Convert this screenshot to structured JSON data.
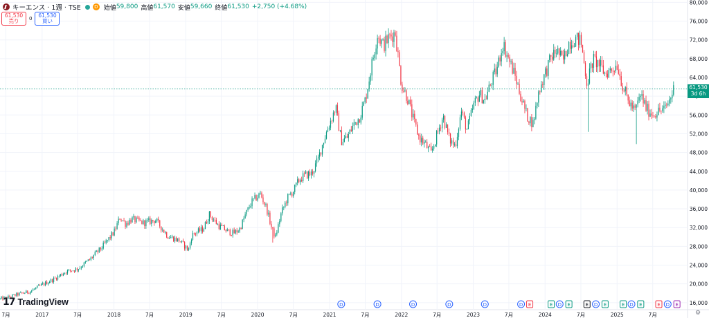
{
  "symbol": {
    "name": "キーエンス · 1週 · TSE",
    "icon": "keyence-logo-icon",
    "status_badge": "D"
  },
  "ohlc": {
    "open_label": "始値",
    "open": "59,800",
    "high_label": "高値",
    "high": "61,570",
    "low_label": "安値",
    "low": "59,660",
    "close_label": "終値",
    "close": "61,530",
    "change": "+2,750 (+4.68%)"
  },
  "trade": {
    "sell_price": "61,530",
    "sell_label": "売り",
    "spread": "0",
    "buy_price": "61,530",
    "buy_label": "買い"
  },
  "last_price": {
    "price": "61,530",
    "countdown": "3d 6h"
  },
  "brand": {
    "logo_icon": "tradingview-logo-icon",
    "name": "TradingView"
  },
  "colors": {
    "up": "#089981",
    "down": "#f23645",
    "dividend": "#2962ff",
    "earnings": "#089981",
    "grid": "#f0f3fa",
    "axis_text": "#131722"
  },
  "chart_data": {
    "type": "candlestick",
    "title": "キーエンス · 1週 · TSE",
    "interval": "1W",
    "currency": "JPY",
    "y_ticks": [
      16000,
      20000,
      24000,
      28000,
      32000,
      36000,
      40000,
      44000,
      48000,
      52000,
      56000,
      60000,
      64000,
      68000,
      72000,
      76000,
      80000
    ],
    "y_tick_labels": [
      "16,000",
      "20,000",
      "24,000",
      "28,000",
      "32,000",
      "36,000",
      "40,000",
      "44,000",
      "48,000",
      "52,000",
      "56,000",
      "60,000",
      "64,000",
      "68,000",
      "72,000",
      "76,000",
      "80,000"
    ],
    "ylim": [
      14500,
      80500
    ],
    "xlim": [
      "2016-06-01",
      "2025-12-25"
    ],
    "x_ticks": [
      {
        "date": "2016-07-01",
        "label": "7月"
      },
      {
        "date": "2017-01-01",
        "label": "2017"
      },
      {
        "date": "2017-07-01",
        "label": "7月"
      },
      {
        "date": "2018-01-01",
        "label": "2018"
      },
      {
        "date": "2018-07-01",
        "label": "7月"
      },
      {
        "date": "2019-01-01",
        "label": "2019"
      },
      {
        "date": "2019-07-01",
        "label": "7月"
      },
      {
        "date": "2020-01-01",
        "label": "2020"
      },
      {
        "date": "2020-07-01",
        "label": "7月"
      },
      {
        "date": "2021-01-01",
        "label": "2021"
      },
      {
        "date": "2021-07-01",
        "label": "7月"
      },
      {
        "date": "2022-01-01",
        "label": "2022"
      },
      {
        "date": "2022-07-01",
        "label": "7月"
      },
      {
        "date": "2023-01-01",
        "label": "2023"
      },
      {
        "date": "2023-07-01",
        "label": "7月"
      },
      {
        "date": "2024-01-01",
        "label": "2024"
      },
      {
        "date": "2024-07-01",
        "label": "7月"
      },
      {
        "date": "2025-01-01",
        "label": "2025"
      },
      {
        "date": "2025-07-01",
        "label": "7月"
      }
    ],
    "last_price": 61530,
    "close_anchors": [
      [
        "2016-06-01",
        16800
      ],
      [
        "2016-07-01",
        17000
      ],
      [
        "2016-09-01",
        17800
      ],
      [
        "2016-11-01",
        18400
      ],
      [
        "2017-01-01",
        19800
      ],
      [
        "2017-03-01",
        21000
      ],
      [
        "2017-05-01",
        22600
      ],
      [
        "2017-07-01",
        23200
      ],
      [
        "2017-09-01",
        25200
      ],
      [
        "2017-11-01",
        27800
      ],
      [
        "2018-01-01",
        31000
      ],
      [
        "2018-02-01",
        34200
      ],
      [
        "2018-03-01",
        32800
      ],
      [
        "2018-04-01",
        33800
      ],
      [
        "2018-06-01",
        33000
      ],
      [
        "2018-08-01",
        33600
      ],
      [
        "2018-10-01",
        30200
      ],
      [
        "2018-12-01",
        29200
      ],
      [
        "2019-01-15",
        27200
      ],
      [
        "2019-02-01",
        30400
      ],
      [
        "2019-04-01",
        31800
      ],
      [
        "2019-05-01",
        34800
      ],
      [
        "2019-06-15",
        32500
      ],
      [
        "2019-08-01",
        31200
      ],
      [
        "2019-09-01",
        30800
      ],
      [
        "2019-10-01",
        31600
      ],
      [
        "2019-11-01",
        34800
      ],
      [
        "2019-12-01",
        37400
      ],
      [
        "2020-01-15",
        39200
      ],
      [
        "2020-02-15",
        36200
      ],
      [
        "2020-03-15",
        31500
      ],
      [
        "2020-04-01",
        30000
      ],
      [
        "2020-05-01",
        35200
      ],
      [
        "2020-06-01",
        38300
      ],
      [
        "2020-07-01",
        39800
      ],
      [
        "2020-08-01",
        42300
      ],
      [
        "2020-09-01",
        43200
      ],
      [
        "2020-10-01",
        43500
      ],
      [
        "2020-11-01",
        46200
      ],
      [
        "2020-12-01",
        50500
      ],
      [
        "2021-01-01",
        54200
      ],
      [
        "2021-02-01",
        57600
      ],
      [
        "2021-03-01",
        50500
      ],
      [
        "2021-04-01",
        51200
      ],
      [
        "2021-05-01",
        53800
      ],
      [
        "2021-06-01",
        55500
      ],
      [
        "2021-07-01",
        59200
      ],
      [
        "2021-08-01",
        66200
      ],
      [
        "2021-09-01",
        73200
      ],
      [
        "2021-10-01",
        70800
      ],
      [
        "2021-11-01",
        72600
      ],
      [
        "2021-12-01",
        73600
      ],
      [
        "2022-01-01",
        62500
      ],
      [
        "2022-02-01",
        59600
      ],
      [
        "2022-03-01",
        55200
      ],
      [
        "2022-04-01",
        51200
      ],
      [
        "2022-05-01",
        49800
      ],
      [
        "2022-06-01",
        47800
      ],
      [
        "2022-07-01",
        51800
      ],
      [
        "2022-08-01",
        55800
      ],
      [
        "2022-09-01",
        50800
      ],
      [
        "2022-10-01",
        49400
      ],
      [
        "2022-11-01",
        56800
      ],
      [
        "2022-12-01",
        52800
      ],
      [
        "2023-01-01",
        57800
      ],
      [
        "2023-02-01",
        60500
      ],
      [
        "2023-03-01",
        59200
      ],
      [
        "2023-04-01",
        62800
      ],
      [
        "2023-05-01",
        65800
      ],
      [
        "2023-06-01",
        71200
      ],
      [
        "2023-07-01",
        67800
      ],
      [
        "2023-08-01",
        64300
      ],
      [
        "2023-09-01",
        59800
      ],
      [
        "2023-10-01",
        55800
      ],
      [
        "2023-11-01",
        54200
      ],
      [
        "2023-12-01",
        61200
      ],
      [
        "2024-01-01",
        64800
      ],
      [
        "2024-02-01",
        68200
      ],
      [
        "2024-03-01",
        69800
      ],
      [
        "2024-04-01",
        67400
      ],
      [
        "2024-05-01",
        71400
      ],
      [
        "2024-06-01",
        72200
      ],
      [
        "2024-07-01",
        71800
      ],
      [
        "2024-08-01",
        62800
      ],
      [
        "2024-09-01",
        67800
      ],
      [
        "2024-10-01",
        66800
      ],
      [
        "2024-11-01",
        64800
      ],
      [
        "2024-12-01",
        65600
      ],
      [
        "2025-01-01",
        66800
      ],
      [
        "2025-02-01",
        61800
      ],
      [
        "2025-03-01",
        58800
      ],
      [
        "2025-04-01",
        56800
      ],
      [
        "2025-05-01",
        60300
      ],
      [
        "2025-06-01",
        57200
      ],
      [
        "2025-07-01",
        56200
      ],
      [
        "2025-08-01",
        56800
      ],
      [
        "2025-09-01",
        57200
      ],
      [
        "2025-10-01",
        59800
      ],
      [
        "2025-10-15",
        61530
      ]
    ],
    "low_spikes": [
      [
        "2024-08-05",
        52400
      ],
      [
        "2025-04-07",
        49800
      ],
      [
        "2020-03-16",
        28800
      ]
    ],
    "events": [
      {
        "date": "2021-03-01",
        "type": "dividend",
        "label": "D"
      },
      {
        "date": "2021-09-01",
        "type": "dividend",
        "label": "D"
      },
      {
        "date": "2022-03-01",
        "type": "dividend",
        "label": "D"
      },
      {
        "date": "2022-09-01",
        "type": "dividend",
        "label": "D"
      },
      {
        "date": "2023-03-01",
        "type": "dividend",
        "label": "D"
      },
      {
        "date": "2023-09-01",
        "type": "dividend",
        "label": "D"
      },
      {
        "date": "2023-10-15",
        "type": "earnings-down",
        "label": "E"
      },
      {
        "date": "2024-02-01",
        "type": "earnings-up",
        "label": "E"
      },
      {
        "date": "2024-03-15",
        "type": "dividend",
        "label": "D"
      },
      {
        "date": "2024-05-01",
        "type": "earnings-up",
        "label": "E"
      },
      {
        "date": "2024-08-01",
        "type": "earnings-neutral",
        "label": "E"
      },
      {
        "date": "2024-09-15",
        "type": "dividend",
        "label": "D"
      },
      {
        "date": "2024-11-01",
        "type": "earnings-up",
        "label": "E"
      },
      {
        "date": "2025-02-01",
        "type": "earnings-up",
        "label": "E"
      },
      {
        "date": "2025-03-15",
        "type": "dividend",
        "label": "D"
      },
      {
        "date": "2025-05-01",
        "type": "earnings-up",
        "label": "E"
      },
      {
        "date": "2025-08-01",
        "type": "earnings-down",
        "label": "E"
      },
      {
        "date": "2025-09-15",
        "type": "dividend",
        "label": "D"
      },
      {
        "date": "2025-11-01",
        "type": "earnings-pending",
        "label": "E"
      }
    ]
  }
}
